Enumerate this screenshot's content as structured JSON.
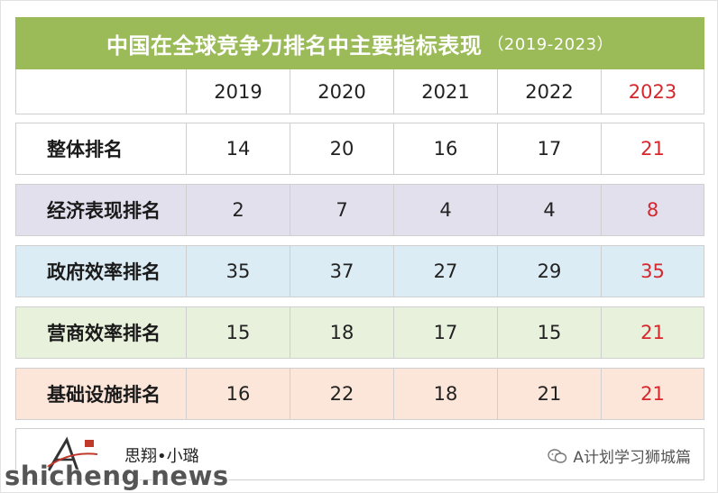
{
  "title": {
    "main": "中国在全球竞争力排名中主要指标表现",
    "sub": "（2019-2023）"
  },
  "table": {
    "headers": [
      "",
      "2019",
      "2020",
      "2021",
      "2022",
      "2023"
    ],
    "rows": [
      {
        "label": "整体排名",
        "values": [
          "14",
          "20",
          "16",
          "17",
          "21"
        ]
      },
      {
        "label": "经济表现排名",
        "values": [
          "2",
          "7",
          "4",
          "4",
          "8"
        ]
      },
      {
        "label": "政府效率排名",
        "values": [
          "35",
          "37",
          "27",
          "29",
          "35"
        ]
      },
      {
        "label": "营商效率排名",
        "values": [
          "15",
          "18",
          "17",
          "15",
          "21"
        ]
      },
      {
        "label": "基础设施排名",
        "values": [
          "16",
          "22",
          "18",
          "21",
          "21"
        ]
      }
    ]
  },
  "footer": {
    "author": "思翔•小璐",
    "wechat": "A计划学习狮城篇",
    "logo_icon": "a-plan-logo-icon"
  },
  "watermark": "shicheng.news",
  "colors": {
    "title_bg": "#9bbb59",
    "highlight_red": "#d6272c",
    "row_bg": [
      "#ffffff",
      "#e3e0ee",
      "#dcecf4",
      "#e8f1dc",
      "#fce6da"
    ]
  }
}
